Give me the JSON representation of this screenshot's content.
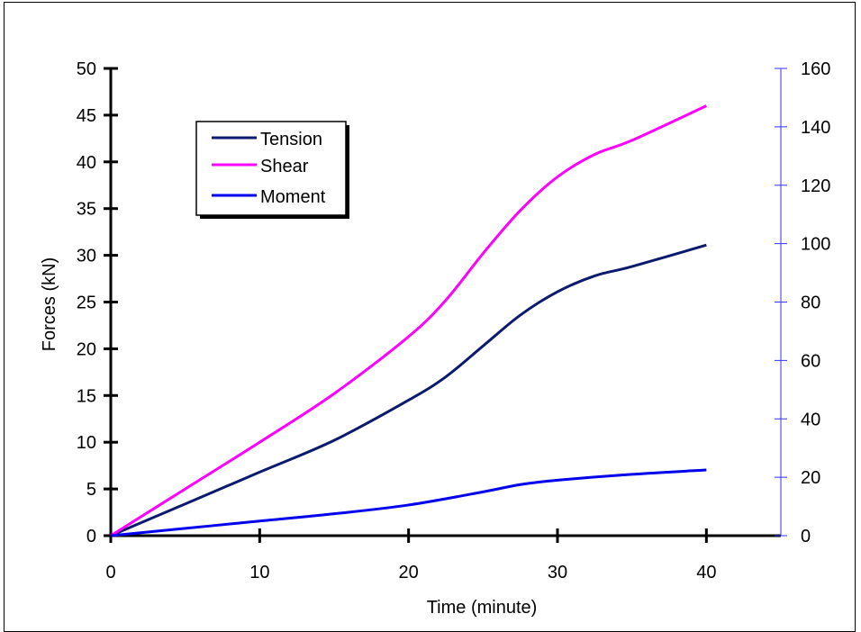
{
  "chart_data": {
    "type": "line",
    "title": "",
    "xlabel": "Time (minute)",
    "ylabel": "Forces (kN)",
    "y2label": "",
    "xlim": [
      0,
      45
    ],
    "ylim": [
      0,
      50
    ],
    "y2lim": [
      0,
      160
    ],
    "x_ticks": [
      0,
      10,
      20,
      30,
      40
    ],
    "y_ticks": [
      0,
      5,
      10,
      15,
      20,
      25,
      30,
      35,
      40,
      45,
      50
    ],
    "y2_ticks": [
      0,
      20,
      40,
      60,
      80,
      100,
      120,
      140,
      160
    ],
    "grid": false,
    "legend_position": "top-left",
    "series": [
      {
        "name": "Tension",
        "axis": "left",
        "color": "#0b1a6e",
        "x": [
          0,
          5,
          10,
          15,
          20,
          22.5,
          25,
          27.5,
          30,
          32.5,
          35,
          40
        ],
        "y": [
          0,
          3.4,
          6.8,
          10.2,
          14.5,
          17.0,
          20.3,
          23.6,
          26.1,
          27.8,
          28.8,
          31.1
        ]
      },
      {
        "name": "Shear",
        "axis": "left",
        "color": "#ff00ff",
        "x": [
          0,
          5,
          10,
          15,
          20,
          22.5,
          25,
          27.5,
          30,
          32.5,
          35,
          40
        ],
        "y": [
          0,
          5.0,
          10.0,
          15.2,
          21.3,
          25.2,
          30.2,
          34.8,
          38.4,
          40.8,
          42.3,
          46.0
        ]
      },
      {
        "name": "Moment",
        "axis": "right",
        "color": "#0000ee",
        "x": [
          0,
          5,
          10,
          15,
          20,
          25,
          27.5,
          30,
          35,
          40
        ],
        "y": [
          0,
          2.5,
          5,
          7.5,
          10.5,
          15,
          17.5,
          19,
          21,
          22.5
        ]
      }
    ]
  }
}
